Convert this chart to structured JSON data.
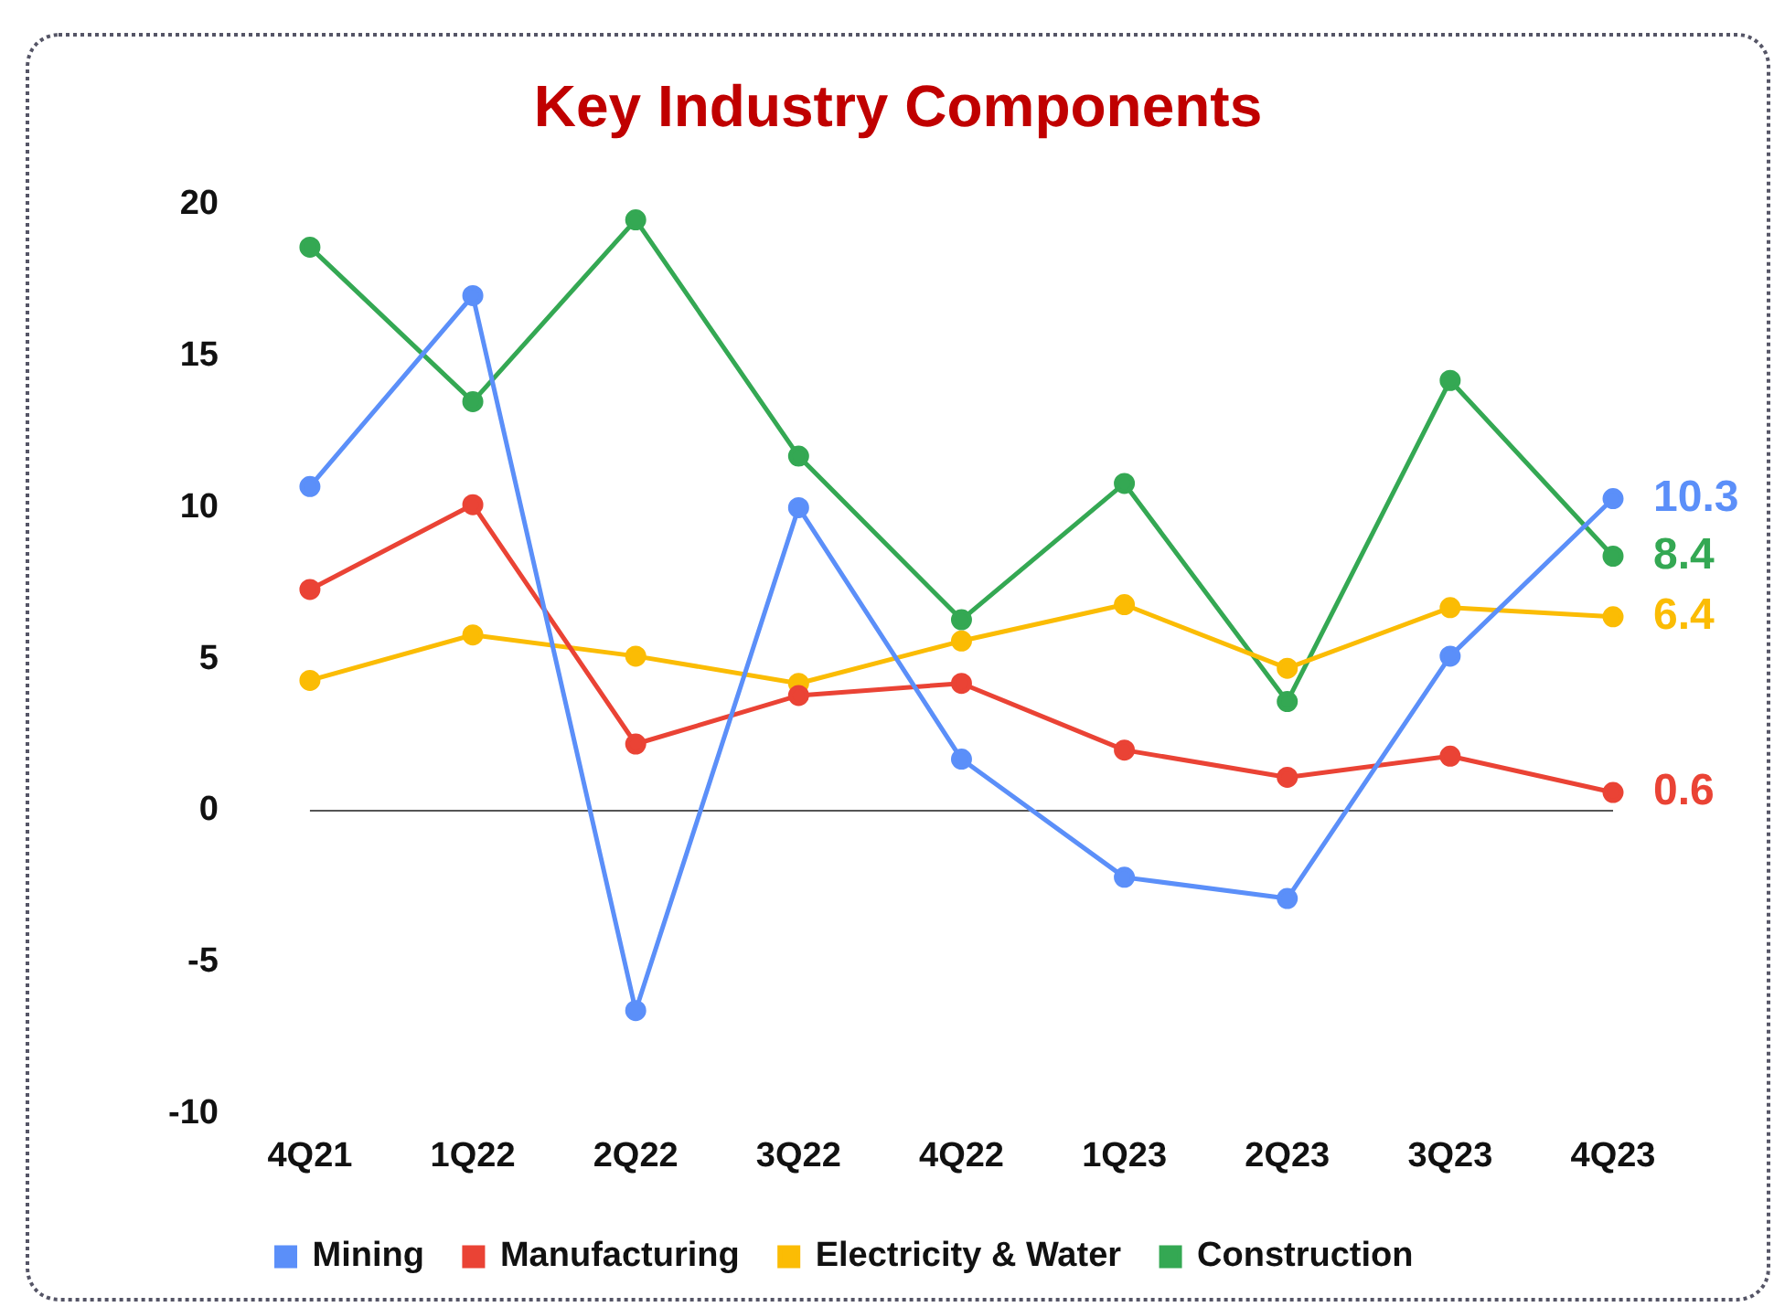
{
  "chart_data": {
    "type": "line",
    "title": "Key Industry Components",
    "categories": [
      "4Q21",
      "1Q22",
      "2Q22",
      "3Q22",
      "4Q22",
      "1Q23",
      "2Q23",
      "3Q23",
      "4Q23"
    ],
    "series": [
      {
        "name": "Mining",
        "color": "#5b8ff9",
        "values": [
          10.7,
          17.0,
          -6.6,
          10.0,
          1.7,
          -2.2,
          -2.9,
          5.1,
          10.3
        ],
        "value_labels": [
          null,
          null,
          null,
          null,
          null,
          null,
          null,
          null,
          "10.3"
        ]
      },
      {
        "name": "Manufacturing",
        "color": "#ea4335",
        "values": [
          7.3,
          10.1,
          2.2,
          3.8,
          4.2,
          2.0,
          1.1,
          1.8,
          0.6
        ],
        "value_labels": [
          null,
          null,
          null,
          null,
          null,
          null,
          null,
          null,
          "0.6"
        ]
      },
      {
        "name": "Electricity & Water",
        "color": "#fbbc04",
        "values": [
          4.3,
          5.8,
          5.1,
          4.2,
          5.6,
          6.8,
          4.7,
          6.7,
          6.4
        ],
        "value_labels": [
          null,
          null,
          null,
          null,
          null,
          null,
          null,
          null,
          "6.4"
        ]
      },
      {
        "name": "Construction",
        "color": "#34a853",
        "values": [
          18.6,
          13.5,
          19.5,
          11.7,
          6.3,
          10.8,
          3.6,
          14.2,
          8.4
        ],
        "value_labels": [
          null,
          null,
          null,
          null,
          null,
          null,
          null,
          null,
          "8.4"
        ]
      }
    ],
    "ylim": [
      -10,
      20
    ],
    "yticks": [
      -10,
      -5,
      0,
      5,
      10,
      15,
      20
    ],
    "grid": false,
    "ref_lines": [
      {
        "axis": "y",
        "value": 0,
        "color": "#555555"
      }
    ],
    "legend": "bottom",
    "marker": "circle",
    "line_style": "solid"
  }
}
